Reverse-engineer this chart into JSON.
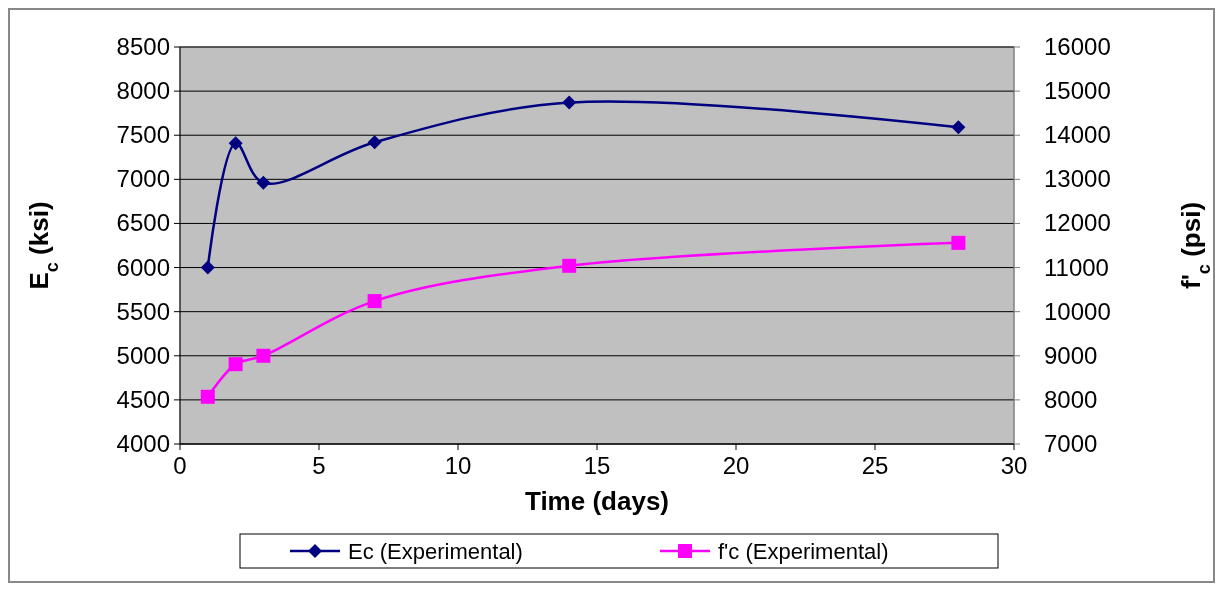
{
  "chart_data": {
    "type": "line",
    "xlabel": "Time (days)",
    "ylabel": "E$_{c}$ (ksi)",
    "y2label": "f'$_{c}$ (psi)",
    "x": [
      1,
      2,
      3,
      7,
      14,
      28
    ],
    "series": [
      {
        "name": "Ec (Experimental)",
        "color": "#000080",
        "marker": "diamond",
        "values": [
          6000,
          7410,
          6960,
          7420,
          7870,
          7590
        ]
      },
      {
        "name": "f'c (Experimental)",
        "color": "#ff00ff",
        "marker": "square",
        "axis": "y2",
        "values": [
          8070,
          8810,
          9000,
          10240,
          11040,
          11560
        ]
      }
    ],
    "xlim": [
      0,
      30
    ],
    "xticks": [
      0,
      5,
      10,
      15,
      20,
      25,
      30
    ],
    "ylim": [
      4000,
      8500
    ],
    "yticks": [
      4000,
      4500,
      5000,
      5500,
      6000,
      6500,
      7000,
      7500,
      8000,
      8500
    ],
    "y2lim": [
      7000,
      16000
    ],
    "y2ticks": [
      7000,
      8000,
      9000,
      10000,
      11000,
      12000,
      13000,
      14000,
      15000,
      16000
    ],
    "grid": "y",
    "legend": "bottom",
    "line_style": "solid"
  }
}
